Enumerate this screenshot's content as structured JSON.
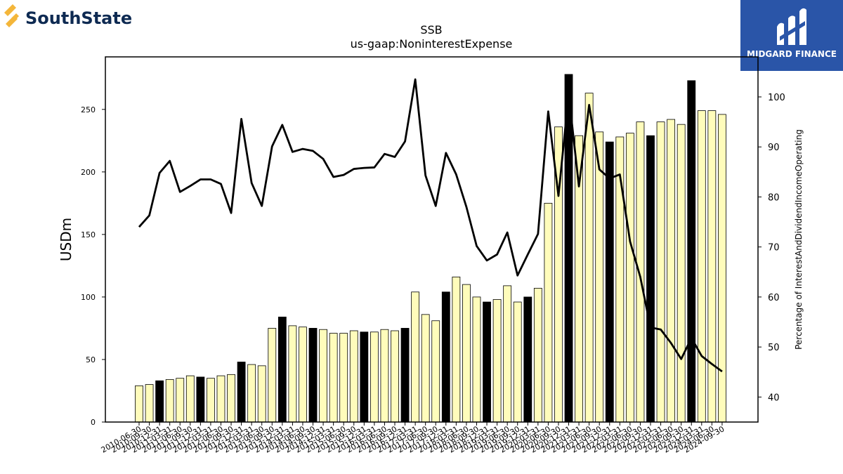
{
  "branding": {
    "left_logo_text": "SouthState",
    "left_logo_color": "#0e2a52",
    "left_logo_accent": "#f4b63a",
    "right_logo_text": "MIDGARD FINANCE",
    "right_logo_bg": "#2a55a8"
  },
  "chart_data": {
    "type": "bar",
    "title": "SSB",
    "subtitle": "us-gaap:NoninterestExpense",
    "ylabel": "USDm",
    "y2label": "Percentage of InterestAndDividendIncomeOperating",
    "ylim": [
      0,
      292
    ],
    "y2lim": [
      35,
      108
    ],
    "yticks": [
      0,
      50,
      100,
      150,
      200,
      250
    ],
    "y2ticks": [
      40,
      50,
      60,
      70,
      80,
      90,
      100
    ],
    "bar_color": "#fffcbb",
    "highlight_color": "#000000",
    "line_color": "#000000",
    "categories": [
      "2010-06-30",
      "2010-09-30",
      "2010-12-31",
      "2011-03-31",
      "2011-06-30",
      "2011-09-30",
      "2011-12-31",
      "2012-03-31",
      "2012-06-30",
      "2012-09-30",
      "2012-12-31",
      "2013-03-31",
      "2013-06-30",
      "2013-09-30",
      "2013-12-31",
      "2014-03-31",
      "2014-06-30",
      "2014-09-30",
      "2014-12-31",
      "2015-03-31",
      "2015-06-30",
      "2015-09-30",
      "2015-12-31",
      "2016-03-31",
      "2016-06-30",
      "2016-09-30",
      "2016-12-31",
      "2017-03-31",
      "2017-06-30",
      "2017-09-30",
      "2017-12-31",
      "2018-03-31",
      "2018-06-30",
      "2018-09-30",
      "2018-12-31",
      "2019-03-31",
      "2019-06-30",
      "2019-09-30",
      "2019-12-31",
      "2020-03-31",
      "2020-06-30",
      "2020-09-30",
      "2020-12-31",
      "2021-03-31",
      "2021-06-30",
      "2021-09-30",
      "2021-12-31",
      "2022-03-31",
      "2022-06-30",
      "2022-09-30",
      "2022-12-31",
      "2023-03-31",
      "2023-06-30",
      "2023-09-30",
      "2023-12-31",
      "2024-03-31",
      "2024-06-30",
      "2024-09-30"
    ],
    "tick_labels_shown": [
      "2010-06-30",
      "2010-09-30",
      "2010-12-31",
      "2011-03-31",
      "2011-06-30",
      "2011-09-30",
      "2011-12-31",
      "2012-03-31",
      "2012-06-30",
      "2012-09-30",
      "2012-12-31",
      "2013-03-31",
      "2013-06-30",
      "2013-09-30",
      "2013-12-31",
      "2014-03-31",
      "2014-06-30",
      "2014-09-30",
      "2014-12-31",
      "2015-03-31",
      "2015-06-30",
      "2015-09-30",
      "2015-12-31",
      "2016-03-31",
      "2016-06-30",
      "2016-09-30",
      "2016-12-31",
      "2017-03-31",
      "2017-06-30",
      "2017-09-30",
      "2017-12-31",
      "2018-03-31",
      "2018-06-30",
      "2018-09-30",
      "2018-12-31",
      "2019-03-31",
      "2019-06-30",
      "2019-09-30",
      "2019-12-31",
      "2020-03-31",
      "2020-06-30",
      "2020-09-30",
      "2020-12-31",
      "2021-03-31",
      "2021-06-30",
      "2021-09-30",
      "2021-12-31",
      "2022-03-31",
      "2022-06-30",
      "2022-09-30",
      "2022-12-31",
      "2023-03-31",
      "2023-06-30",
      "2023-09-30",
      "2023-12-31",
      "2024-03-31",
      "2024-06-30",
      "2024-09-30"
    ],
    "series": [
      {
        "type": "bar",
        "values": [
          29,
          30,
          33,
          34,
          35,
          37,
          36,
          35,
          37,
          38,
          48,
          46,
          45,
          75,
          84,
          77,
          76,
          75,
          74,
          71,
          71,
          73,
          72,
          72,
          74,
          73,
          75,
          104,
          86,
          81,
          104,
          116,
          110,
          100,
          96,
          98,
          109,
          96,
          100,
          107,
          175,
          236,
          278,
          229,
          263,
          232,
          224,
          228,
          231,
          240,
          229,
          240,
          242,
          238,
          273,
          249,
          249,
          246
        ],
        "highlight": [
          false,
          false,
          true,
          false,
          false,
          false,
          true,
          false,
          false,
          false,
          true,
          false,
          false,
          false,
          true,
          false,
          false,
          true,
          false,
          false,
          false,
          false,
          true,
          false,
          false,
          false,
          true,
          false,
          false,
          false,
          true,
          false,
          false,
          false,
          true,
          false,
          false,
          false,
          true,
          false,
          false,
          false,
          true,
          false,
          false,
          false,
          true,
          false,
          false,
          false,
          true,
          false,
          false,
          false,
          true,
          false,
          false,
          false
        ]
      },
      {
        "type": "line",
        "axis": "right",
        "values": [
          74,
          76.3,
          84.8,
          87.2,
          81,
          82.2,
          83.5,
          83.5,
          82.6,
          76.8,
          95.6,
          82.8,
          78.2,
          90.1,
          94.4,
          89,
          89.6,
          89.2,
          87.6,
          84,
          84.4,
          85.6,
          85.8,
          85.9,
          88.6,
          88,
          91.1,
          103.5,
          84.3,
          78.2,
          88.8,
          84.5,
          78,
          70.2,
          67.3,
          68.5,
          72.9,
          64.3,
          68.5,
          72.6,
          97.1,
          80.2,
          100.6,
          82.1,
          98.4,
          85.5,
          83.7,
          84.5,
          71.1,
          64,
          53.9,
          53.5,
          50.8,
          47.6,
          51.8,
          48.2,
          46.6,
          45.1
        ]
      }
    ]
  }
}
